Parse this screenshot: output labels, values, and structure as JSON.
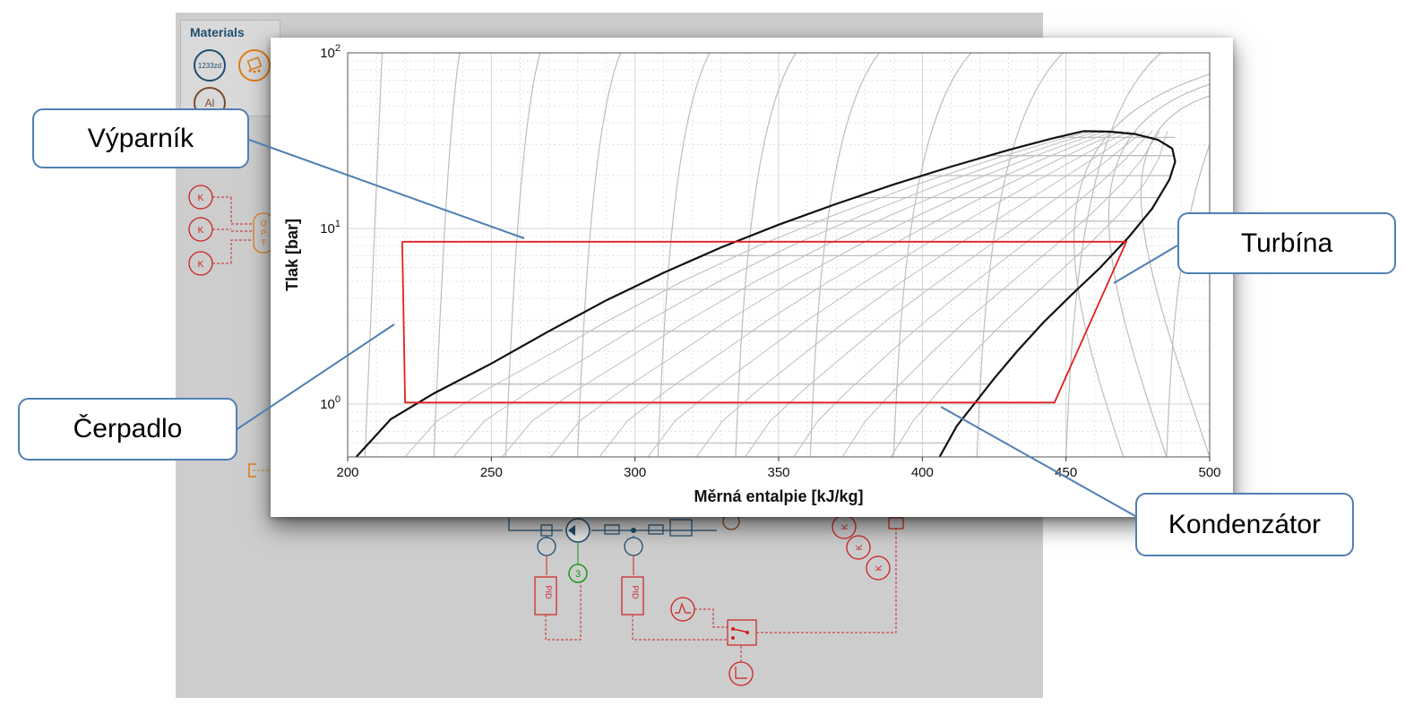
{
  "materials": {
    "title": "Materials",
    "items": [
      {
        "label": "1233zd",
        "color": "#1f4e6e"
      },
      {
        "label": "",
        "icon": "mixture-icon",
        "color": "#e07b19"
      },
      {
        "label": "Al",
        "color": "#7a4b2a"
      }
    ]
  },
  "schematic": {
    "sensor_symbol": "K",
    "controller_label": "PID",
    "speed_label": "3",
    "opt_letters": [
      "Q",
      "P",
      "T"
    ],
    "red_color": "#cc2222",
    "orange_color": "#e07b19",
    "green_color": "#1a9a1a",
    "navy_color": "#1f4e6e"
  },
  "chart_data": {
    "type": "line",
    "xlabel": "Měrná entalpie [kJ/kg]",
    "ylabel": "Tlak [bar]",
    "xlim": [
      200,
      500
    ],
    "ylim": [
      0.5,
      100
    ],
    "yscale": "log",
    "x_ticks": [
      200,
      250,
      300,
      350,
      400,
      450,
      500
    ],
    "y_ticks": [
      {
        "mantissa": "10",
        "exponent": "0"
      },
      {
        "mantissa": "10",
        "exponent": "1"
      },
      {
        "mantissa": "10",
        "exponent": "2"
      }
    ],
    "grid": true,
    "colors": {
      "cycle": "#e02020",
      "dome": "#111111",
      "isolines": "#bdbdbd",
      "grid": "#d6d6d6"
    },
    "saturation_liquid": {
      "x": [
        203,
        215,
        230,
        250,
        270,
        290,
        310,
        330,
        350,
        370,
        390,
        410,
        430,
        445,
        456
      ],
      "y": [
        0.5,
        0.82,
        1.15,
        1.7,
        2.6,
        3.9,
        5.6,
        7.8,
        10.5,
        13.8,
        17.8,
        22.5,
        28.0,
        32.5,
        35.8
      ]
    },
    "saturation_vapor": {
      "x": [
        406,
        412,
        418,
        425,
        433,
        442,
        452,
        462,
        472,
        480,
        486,
        488,
        487,
        482,
        474,
        465,
        456
      ],
      "y": [
        0.5,
        0.75,
        1.0,
        1.4,
        2.0,
        2.9,
        4.2,
        6.0,
        9.0,
        13.0,
        19.0,
        24.0,
        28.5,
        32.0,
        34.5,
        35.6,
        35.8
      ]
    },
    "cycle": {
      "name": "",
      "x": [
        219,
        471,
        446,
        220,
        219
      ],
      "y": [
        8.4,
        8.4,
        1.02,
        1.02,
        8.4
      ]
    },
    "isobars_p": [
      0.6,
      1.3,
      2.6,
      4.5,
      7.0,
      11.0,
      15.0,
      20.0,
      26.0,
      33.0
    ],
    "isotherm_x": [
      208,
      232,
      257,
      282,
      310,
      337,
      363,
      392,
      421,
      452,
      487
    ]
  },
  "callouts": {
    "vyparnik": "Výparník",
    "cerpadlo": "Čerpadlo",
    "turbina": "Turbína",
    "kondenzator": "Kondenzátor"
  }
}
